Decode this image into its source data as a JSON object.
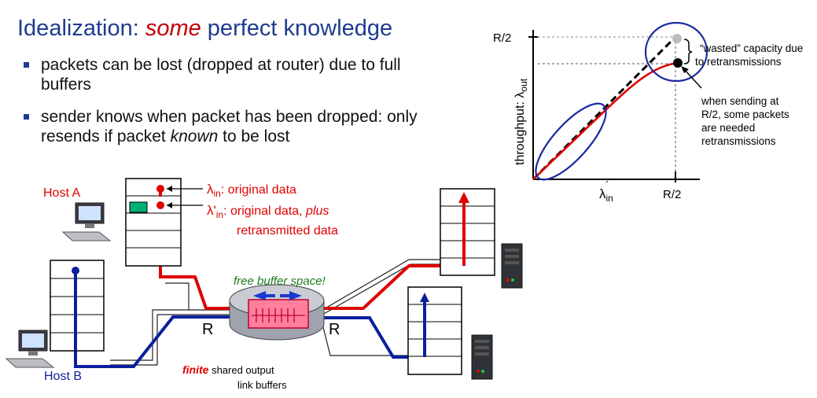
{
  "title": {
    "prefix": "Idealization: ",
    "emphasis": "some",
    "suffix": " perfect knowledge"
  },
  "bullets": [
    {
      "text": "packets can be lost (dropped at router) due  to full buffers"
    },
    {
      "pre": "sender knows when packet has been dropped: only resends if packet ",
      "em": "known",
      "post": " to be lost"
    }
  ],
  "hosts": {
    "a": "Host A",
    "b": "Host B"
  },
  "labels": {
    "lambda_in": "λ",
    "lambda_in_sub": "in",
    "lambda_in_desc": ": original data",
    "lambda_prime": "λ'",
    "lambda_prime_sub": "in",
    "lambda_prime_desc1": ": original data, ",
    "lambda_prime_desc_em": "plus",
    "lambda_prime_desc2": "retransmitted data",
    "free_buffer": "free buffer space!",
    "link_left": "R",
    "link_right": "R",
    "finite": "finite",
    "shared1": " shared output",
    "shared2": "link buffers"
  },
  "graph": {
    "ylabel_prefix": "throughput: λ",
    "ylabel_sub": "out",
    "y_tick": "R/2",
    "x_tick": "R/2",
    "x_label": "λ",
    "x_label_sub": "in",
    "x_label_prime": "´",
    "annotation_wasted": [
      "“wasted” capacity due",
      "to retransmissions"
    ],
    "annotation_sending": [
      "when sending at",
      "R/2, some packets",
      "are needed",
      "retransmissions"
    ]
  },
  "colors": {
    "title": "#1f3b8f",
    "red": "#e00000",
    "blue": "#0b1f9e",
    "green": "#1e7a1e",
    "buffer": "#ff7f9c"
  }
}
